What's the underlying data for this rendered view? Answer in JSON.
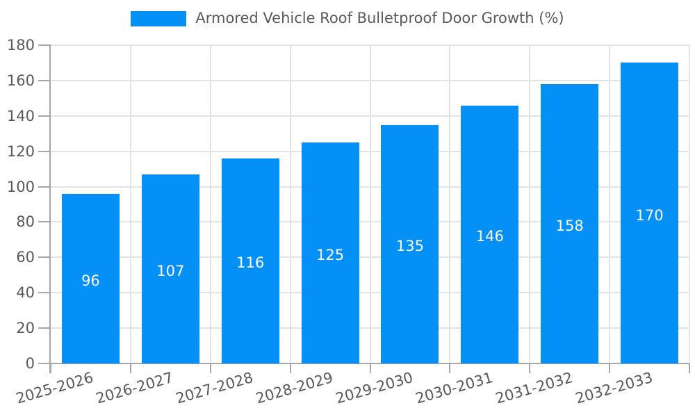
{
  "chart_data": {
    "type": "bar",
    "title": "Armored Vehicle Roof Bulletproof Door Growth (%)",
    "categories": [
      "2025-2026",
      "2026-2027",
      "2027-2028",
      "2028-2029",
      "2029-2030",
      "2030-2031",
      "2031-2032",
      "2032-2033"
    ],
    "values": [
      96,
      107,
      116,
      125,
      135,
      146,
      158,
      170
    ],
    "xlabel": "",
    "ylabel": "",
    "ylim": [
      0,
      180
    ],
    "ytick_step": 20,
    "ytick_labels": [
      "0",
      "20",
      "40",
      "60",
      "80",
      "100",
      "120",
      "140",
      "160",
      "180"
    ],
    "grid": true,
    "legend_position": "top",
    "value_labels_shown": true
  },
  "colors": {
    "bar": "#0590f8",
    "value_label": "#ffffff",
    "tick_label": "#595959",
    "legend_text": "#595959",
    "gridline": "#e3e3e3",
    "axis": "#a6a6a6"
  }
}
